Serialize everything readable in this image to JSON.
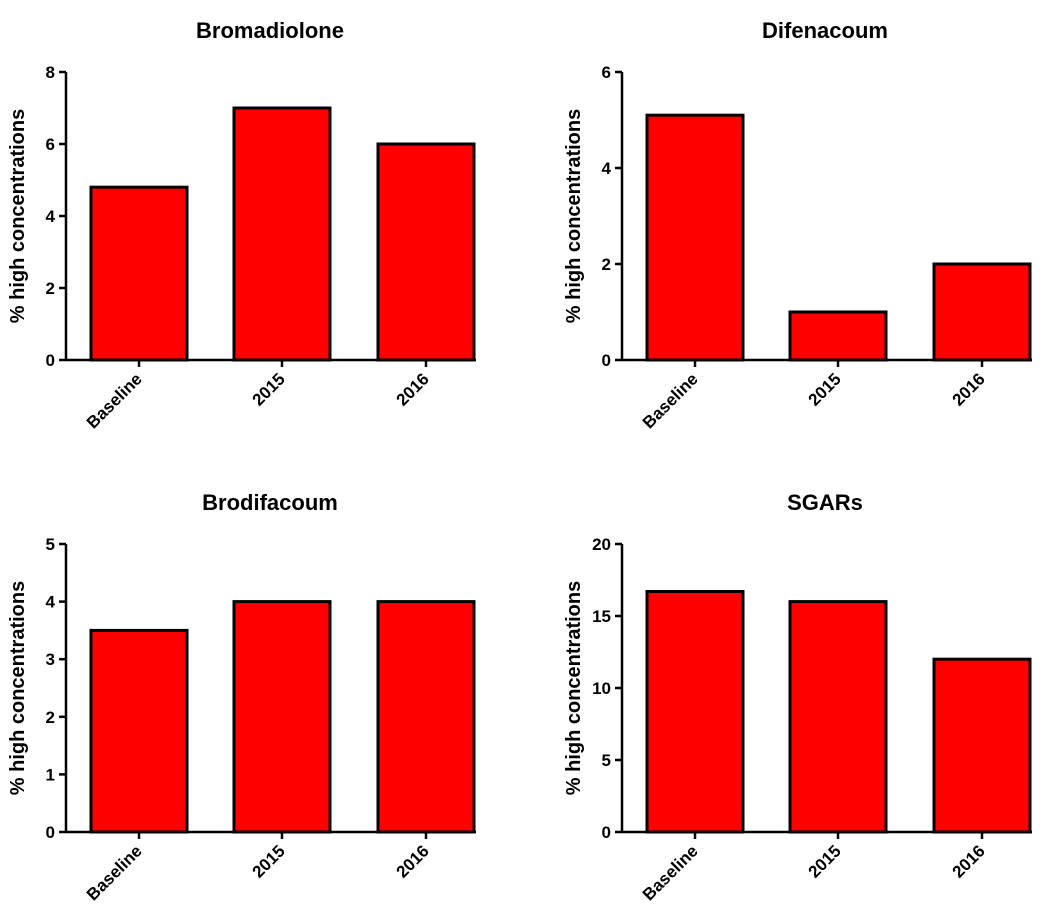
{
  "chart_data": [
    {
      "type": "bar",
      "title": "Bromadiolone",
      "ylabel": "% high concentrations",
      "categories": [
        "Baseline",
        "2015",
        "2016"
      ],
      "values": [
        4.8,
        7.0,
        6.0
      ],
      "ylim": [
        0,
        8
      ],
      "yticks": [
        0,
        2,
        4,
        6,
        8
      ],
      "bar_color": "#ff0000",
      "grid": false
    },
    {
      "type": "bar",
      "title": "Difenacoum",
      "ylabel": "% high concentrations",
      "categories": [
        "Baseline",
        "2015",
        "2016"
      ],
      "values": [
        5.1,
        1.0,
        2.0
      ],
      "ylim": [
        0,
        6
      ],
      "yticks": [
        0,
        2,
        4,
        6
      ],
      "bar_color": "#ff0000",
      "grid": false
    },
    {
      "type": "bar",
      "title": "Brodifacoum",
      "ylabel": "% high concentrations",
      "categories": [
        "Baseline",
        "2015",
        "2016"
      ],
      "values": [
        3.5,
        4.0,
        4.0
      ],
      "ylim": [
        0,
        5
      ],
      "yticks": [
        0,
        1,
        2,
        3,
        4,
        5
      ],
      "bar_color": "#ff0000",
      "grid": false
    },
    {
      "type": "bar",
      "title": "SGARs",
      "ylabel": "% high concentrations",
      "categories": [
        "Baseline",
        "2015",
        "2016"
      ],
      "values": [
        16.7,
        16.0,
        12.0
      ],
      "ylim": [
        0,
        20
      ],
      "yticks": [
        0,
        5,
        10,
        15,
        20
      ],
      "bar_color": "#ff0000",
      "grid": false
    }
  ]
}
